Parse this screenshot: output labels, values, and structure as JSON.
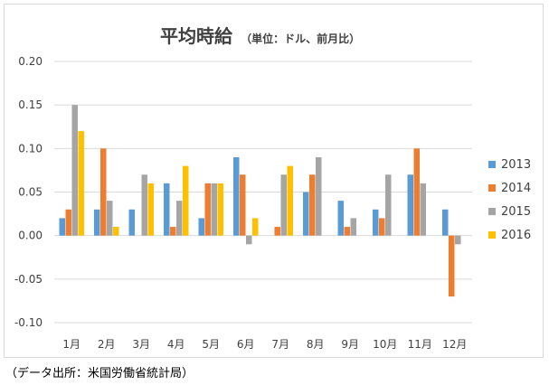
{
  "chart_data": {
    "type": "bar",
    "title": "平均時給",
    "subtitle": "（単位：ドル、前月比）",
    "categories": [
      "1月",
      "2月",
      "3月",
      "4月",
      "5月",
      "6月",
      "7月",
      "8月",
      "9月",
      "10月",
      "11月",
      "12月"
    ],
    "series": [
      {
        "name": "2013",
        "color": "#5b9bd5",
        "values": [
          0.02,
          0.03,
          0.03,
          0.06,
          0.02,
          0.09,
          null,
          0.05,
          0.04,
          0.03,
          0.07,
          0.03
        ]
      },
      {
        "name": "2014",
        "color": "#ed7d31",
        "values": [
          0.03,
          0.1,
          null,
          0.01,
          0.06,
          0.07,
          0.01,
          0.07,
          0.01,
          0.02,
          0.1,
          -0.07
        ]
      },
      {
        "name": "2015",
        "color": "#a5a5a5",
        "values": [
          0.15,
          0.04,
          0.07,
          0.04,
          0.06,
          -0.01,
          0.07,
          0.09,
          0.02,
          0.07,
          0.06,
          -0.01
        ]
      },
      {
        "name": "2016",
        "color": "#ffc000",
        "values": [
          0.12,
          0.01,
          0.06,
          0.08,
          0.06,
          0.02,
          0.08,
          null,
          null,
          null,
          null,
          null
        ]
      }
    ],
    "ylim": [
      -0.1,
      0.2
    ],
    "yticks": [
      "0.20",
      "0.15",
      "0.10",
      "0.05",
      "0.00",
      "-0.05",
      "-0.10"
    ],
    "grid": true,
    "legend_position": "right"
  },
  "source": "（データ出所：米国労働省統計局）"
}
